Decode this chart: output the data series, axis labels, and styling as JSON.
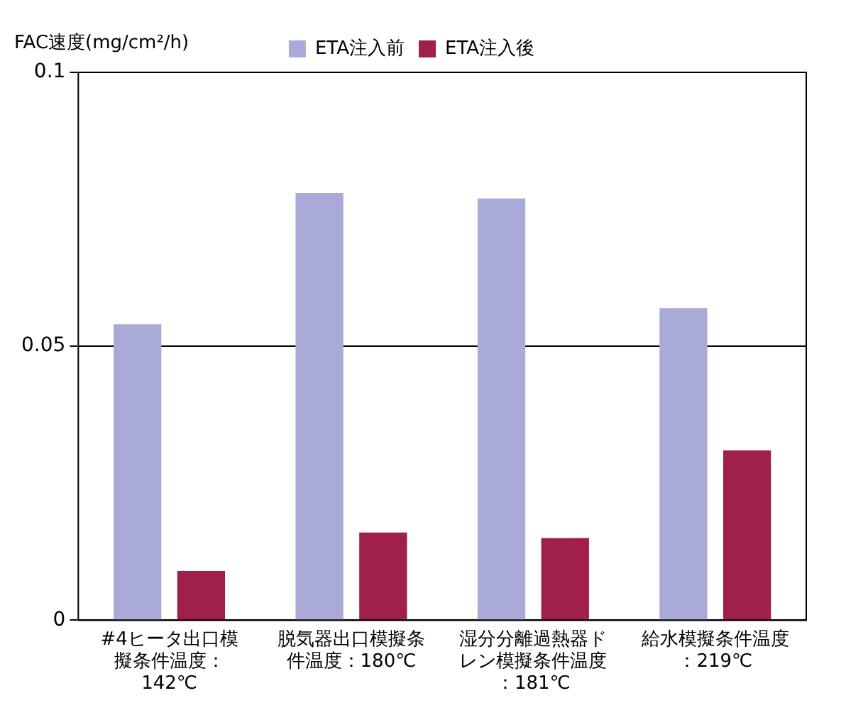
{
  "chart_data": {
    "type": "bar",
    "ylabel": "FAC速度(mg/cm²/h)",
    "categories": [
      "#4ヒータ出口模擬条件温度：142℃",
      "脱気器出口模擬条件温度：180℃",
      "湿分分離過熱器ドレン模擬条件温度：181℃",
      "給水模擬条件温度：219℃"
    ],
    "series": [
      {
        "name": "ETA注入前",
        "color": "#aaaad8",
        "values": [
          0.054,
          0.078,
          0.077,
          0.057
        ]
      },
      {
        "name": "ETA注入後",
        "color": "#a0204a",
        "values": [
          0.009,
          0.016,
          0.015,
          0.031
        ]
      }
    ],
    "ylim": [
      0,
      0.1
    ],
    "yticks": [
      0,
      0.05,
      0.1
    ],
    "grid": "y",
    "legend": "top"
  }
}
